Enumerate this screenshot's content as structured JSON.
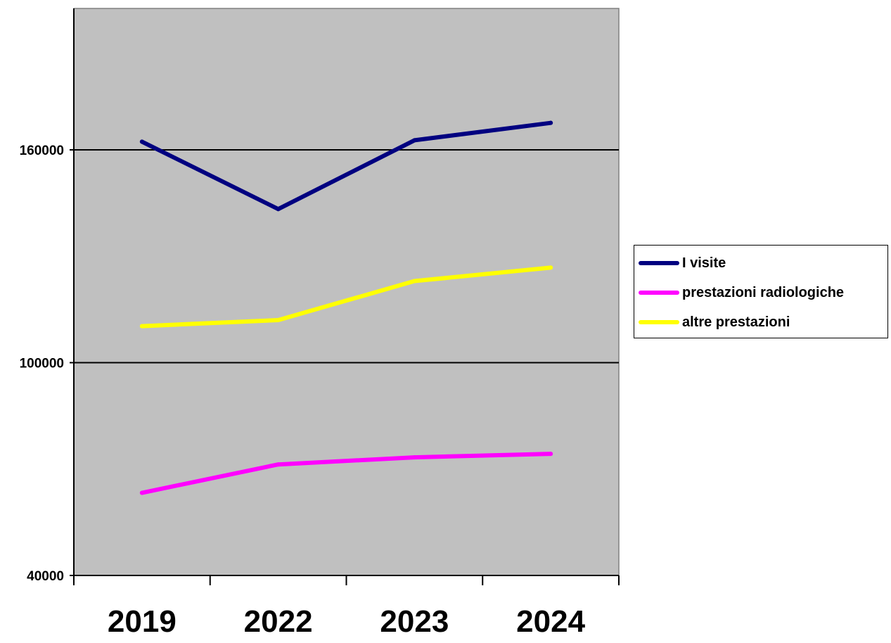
{
  "chart_data": {
    "type": "line",
    "categories": [
      "2019",
      "2022",
      "2023",
      "2024"
    ],
    "ylim": [
      40000,
      160000
    ],
    "yticks": [
      "40000",
      "100000",
      "160000"
    ],
    "grid": true,
    "legend_position": "right",
    "plot_background": "#c0c0c0",
    "series": [
      {
        "name": "I visite",
        "color": "#000080",
        "values": [
          162300,
          143300,
          162700,
          167600
        ]
      },
      {
        "name": "prestazioni radiologiche",
        "color": "#ff00ff",
        "values": [
          63300,
          71300,
          73300,
          74300
        ]
      },
      {
        "name": "altre prestazioni",
        "color": "#ffff00",
        "values": [
          110300,
          112000,
          123000,
          126800
        ]
      }
    ]
  }
}
